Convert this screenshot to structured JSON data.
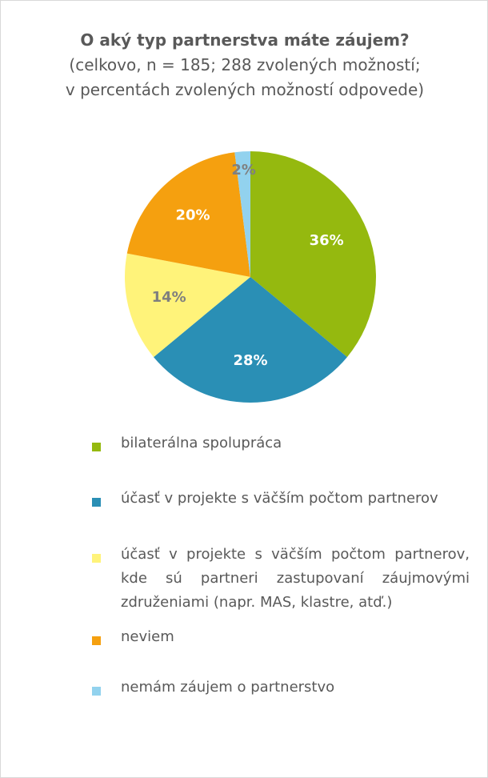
{
  "chart_data": {
    "type": "pie",
    "title": "O aký typ partnerstva máte záujem?",
    "subtitle": "(celkovo, n = 185; 288 zvolených možností; v percentách zvolených možností odpovede)",
    "categories": [
      "bilaterálna spolupráca",
      "účasť v projekte s väčším počtom partnerov",
      "účasť v projekte s väčším počtom partnerov, kde sú partneri zastupovaní záujmovými združeniami (napr. MAS, klastre, atď.)",
      "neviem",
      "nemám záujem o partnerstvo"
    ],
    "values": [
      36,
      28,
      14,
      20,
      2
    ],
    "value_labels": [
      "36%",
      "28%",
      "14%",
      "20%",
      "2%"
    ],
    "colors": [
      "#95b90f",
      "#2a8fb5",
      "#fff37a",
      "#f5a00f",
      "#92d2ee"
    ],
    "label_colors": [
      "#ffffff",
      "#ffffff",
      "#7f7f7f",
      "#ffffff",
      "#7f7f7f"
    ]
  }
}
